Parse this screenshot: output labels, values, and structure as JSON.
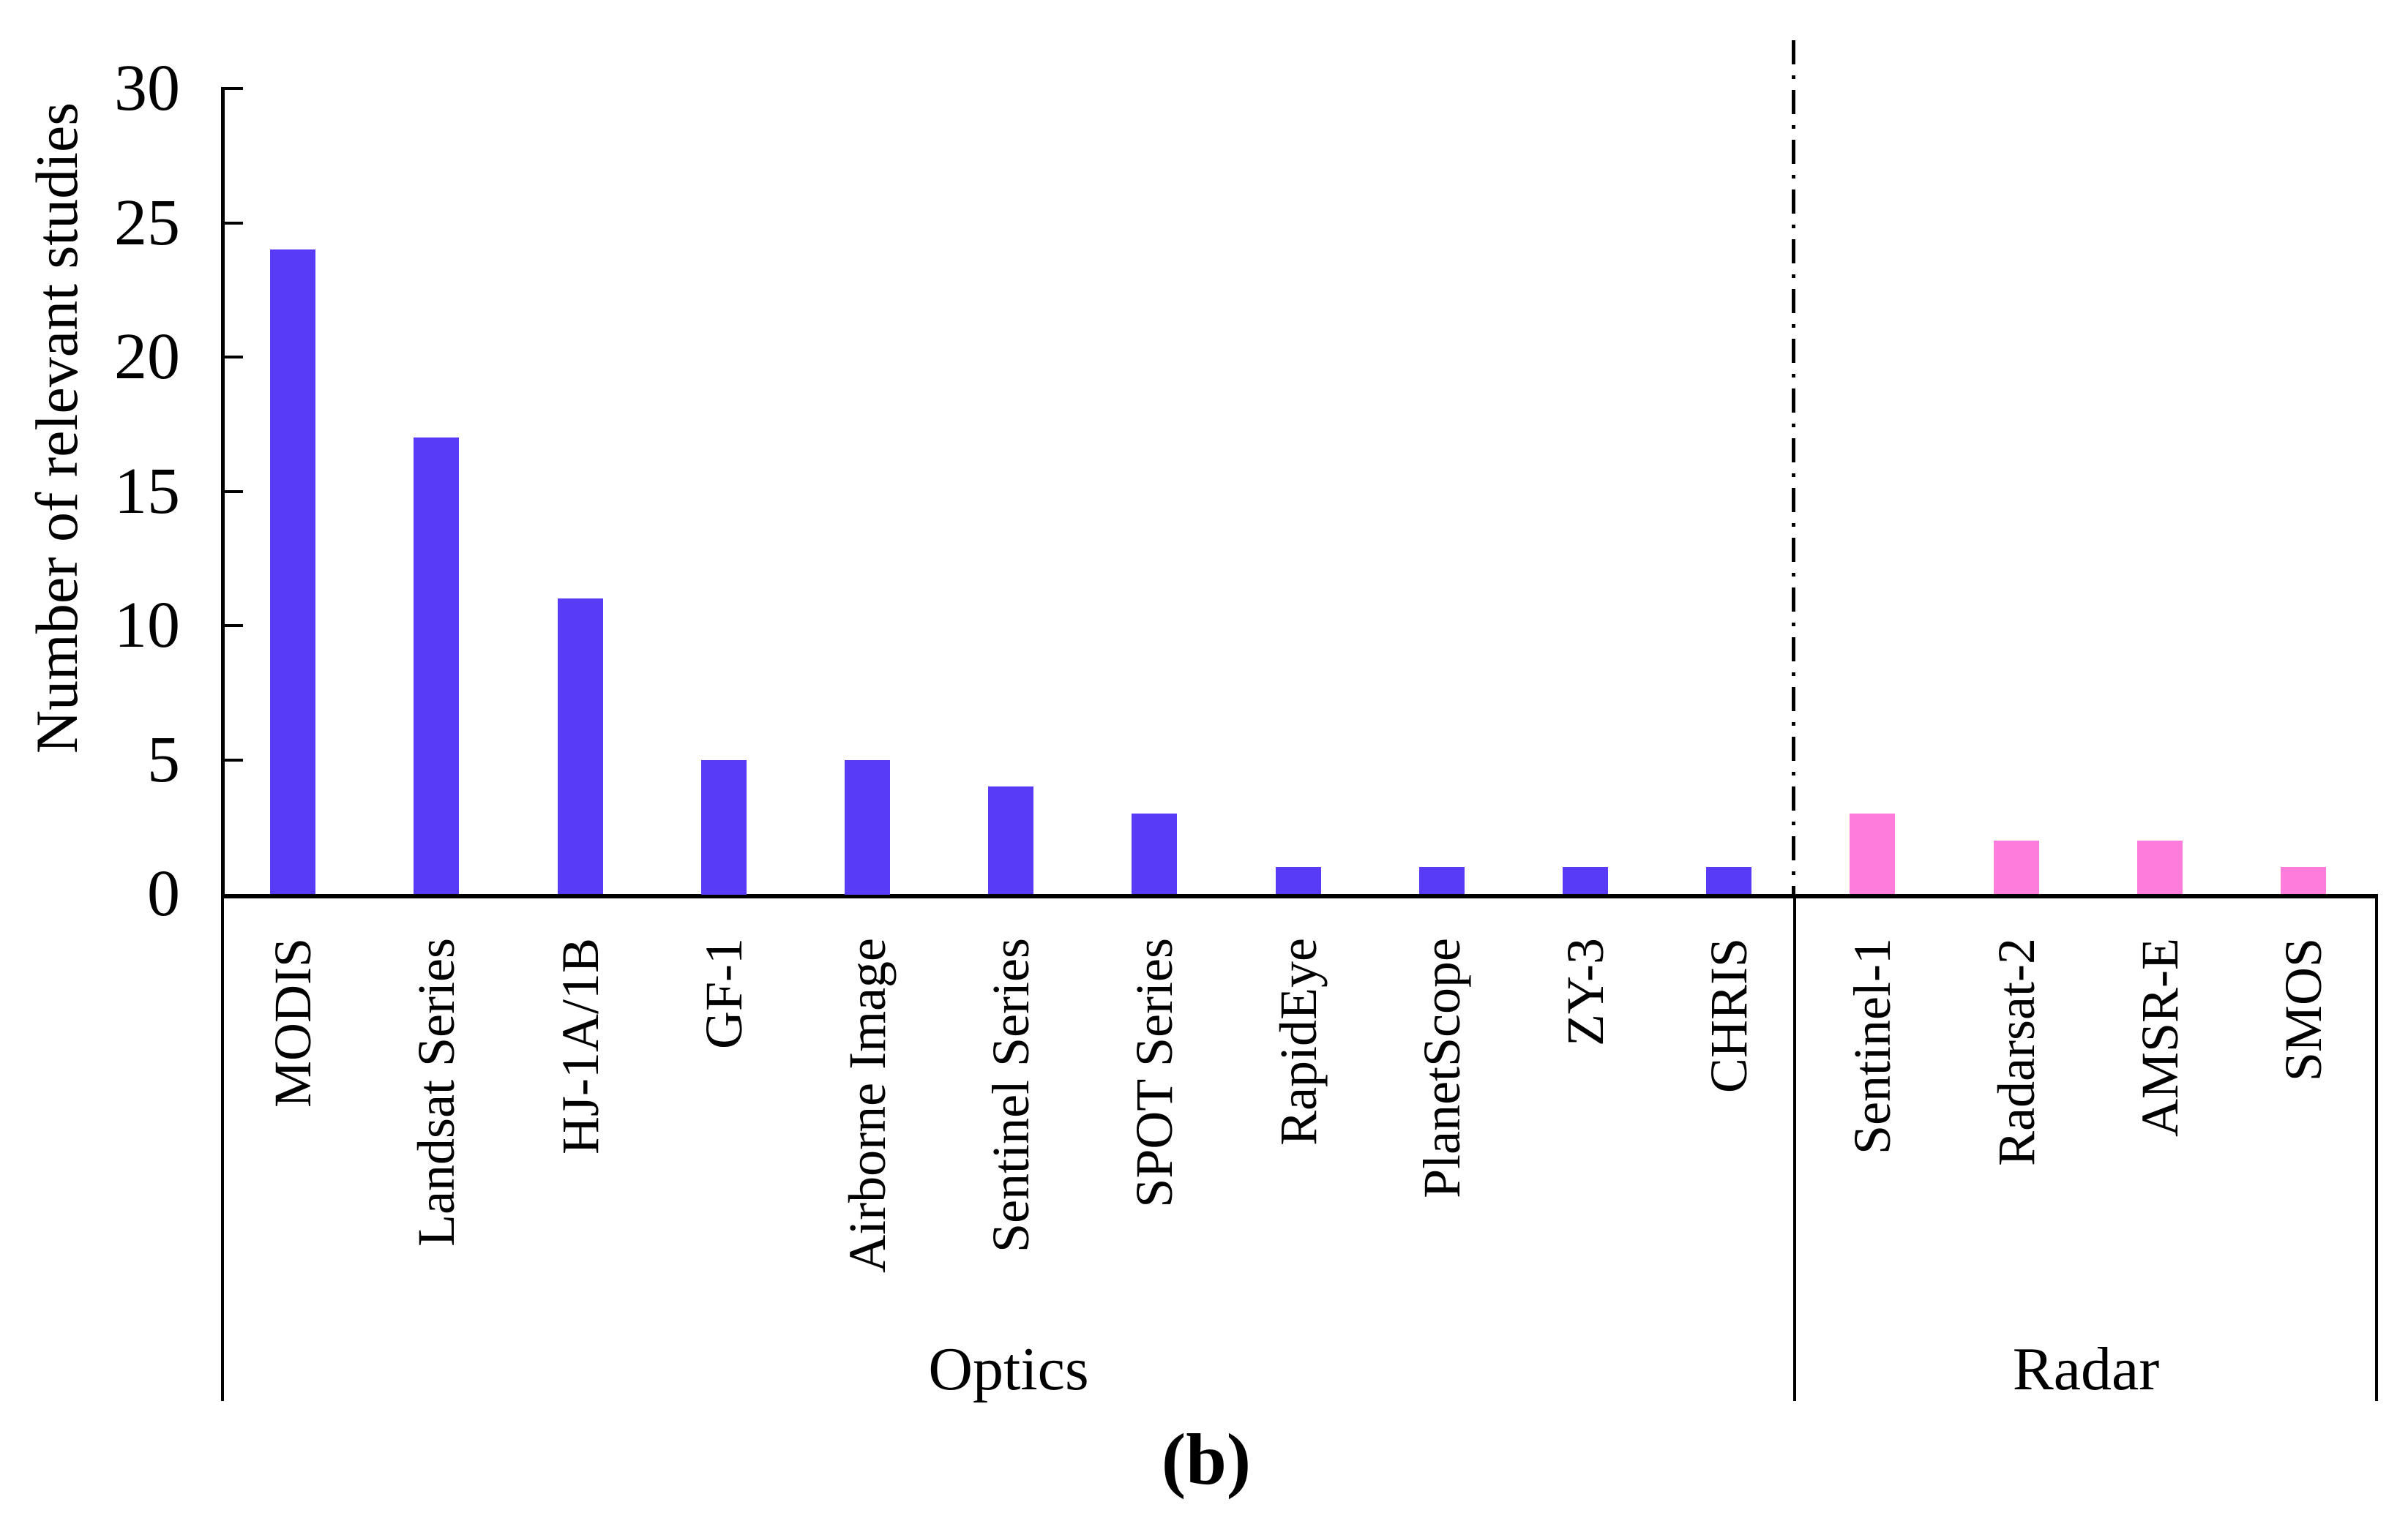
{
  "chart_data": {
    "type": "bar",
    "title": "",
    "xlabel": "",
    "ylabel": "Number of relevant studies",
    "ylim": [
      0,
      30
    ],
    "yticks": [
      0,
      5,
      10,
      15,
      20,
      25,
      30
    ],
    "grid": false,
    "legend_position": "none",
    "categories": [
      "MODIS",
      "Landsat Series",
      "HJ-1A/1B",
      "GF-1",
      "Airborne Image",
      "Sentinel Series",
      "SPOT Series",
      "RapidEye",
      "PlanetScope",
      "ZY-3",
      "CHRIS",
      "Sentinel-1",
      "Radarsat-2",
      "AMSR-E",
      "SMOS"
    ],
    "values": [
      24,
      17,
      11,
      5,
      5,
      4,
      3,
      1,
      1,
      1,
      1,
      3,
      2,
      2,
      1
    ],
    "bar_groups": [
      "Optics",
      "Optics",
      "Optics",
      "Optics",
      "Optics",
      "Optics",
      "Optics",
      "Optics",
      "Optics",
      "Optics",
      "Optics",
      "Radar",
      "Radar",
      "Radar",
      "Radar"
    ],
    "group_labels": [
      "Optics",
      "Radar"
    ],
    "group_colors": {
      "Optics": "#583bf7",
      "Radar": "#fe7cdb"
    },
    "separator_note": "vertical dash-dot line between CHRIS and Sentinel-1",
    "caption": "(b)"
  },
  "colors": {
    "optics_bar": "#583bf7",
    "radar_bar": "#fe7cdb",
    "axis": "#000000",
    "background": "#ffffff"
  }
}
